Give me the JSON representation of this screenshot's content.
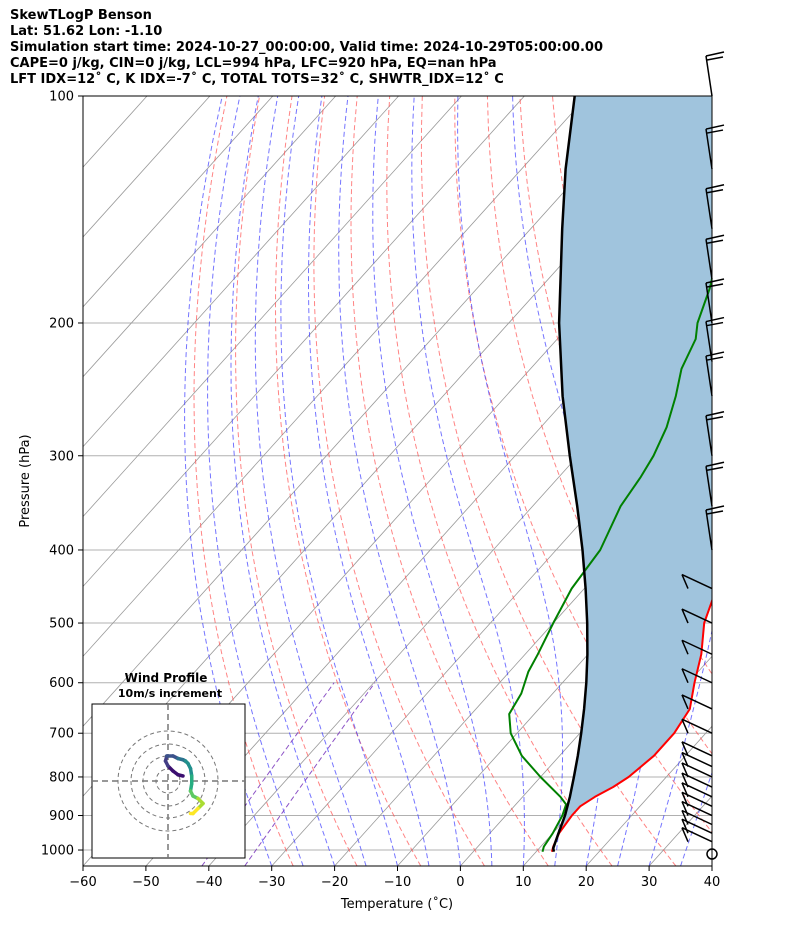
{
  "header": {
    "line1": "SkewTLogP Benson",
    "line2": "Lat: 51.62   Lon: -1.10",
    "line3": "Simulation start time: 2024-10-27_00:00:00, Valid time: 2024-10-29T05:00:00.00",
    "line4": "CAPE=0 j/kg, CIN=0 j/kg, LCL=994 hPa, LFC=920 hPa, EQ=nan hPa",
    "line5": "LFT IDX=12˚ C, K IDX=-7˚ C, TOTAL TOTS=32˚ C, SHWTR_IDX=12˚ C"
  },
  "chart_data": {
    "type": "line",
    "subtype": "skew-T log-P",
    "xlabel": "Temperature ($^\\circ$C)",
    "ylabel": "Pressure (hPa)",
    "xlim": [
      -60,
      40
    ],
    "ylim": [
      1050,
      100
    ],
    "xticks": [
      "−60",
      "−50",
      "−40",
      "−30",
      "−20",
      "−10",
      "0",
      "10",
      "20",
      "30",
      "40"
    ],
    "yticks": [
      "100",
      "200",
      "300",
      "400",
      "500",
      "600",
      "700",
      "800",
      "900",
      "1000"
    ],
    "grid": true,
    "colors": {
      "temperature": "#ff0000",
      "dewpoint": "#008000",
      "parcel": "#000000",
      "shading": "#a0c4dd",
      "dry_adiabat": "#ff5050",
      "moist_adiabat": "#3a3aff",
      "mixing_ratio": "#8040c0",
      "isotherm": "#999999"
    },
    "series": [
      {
        "key": "temperature",
        "values": [
          [
            1005,
            12.5
          ],
          [
            990,
            12
          ],
          [
            950,
            11
          ],
          [
            900,
            10.5
          ],
          [
            875,
            10.5
          ],
          [
            850,
            11.5
          ],
          [
            825,
            13
          ],
          [
            800,
            14
          ],
          [
            750,
            15
          ],
          [
            700,
            15
          ],
          [
            650,
            14
          ],
          [
            600,
            11
          ],
          [
            550,
            8
          ],
          [
            500,
            4
          ],
          [
            450,
            1
          ],
          [
            400,
            -3
          ],
          [
            350,
            -7
          ],
          [
            300,
            -13
          ],
          [
            275,
            -16
          ],
          [
            250,
            -18
          ],
          [
            230,
            -20
          ],
          [
            210,
            -21
          ],
          [
            200,
            -22
          ],
          [
            180,
            -25
          ],
          [
            170,
            -27
          ],
          [
            155,
            -29
          ],
          [
            140,
            -32
          ],
          [
            125,
            -35
          ],
          [
            113,
            -38
          ],
          [
            100,
            -42
          ]
        ]
      },
      {
        "key": "dewpoint",
        "values": [
          [
            1005,
            11
          ],
          [
            990,
            10.5
          ],
          [
            950,
            10
          ],
          [
            900,
            9
          ],
          [
            870,
            8
          ],
          [
            850,
            6
          ],
          [
            800,
            0
          ],
          [
            750,
            -6
          ],
          [
            700,
            -11
          ],
          [
            660,
            -14
          ],
          [
            620,
            -15
          ],
          [
            580,
            -17
          ],
          [
            550,
            -18
          ],
          [
            500,
            -20
          ],
          [
            450,
            -22
          ],
          [
            400,
            -23
          ],
          [
            350,
            -26
          ],
          [
            320,
            -27
          ],
          [
            300,
            -28
          ],
          [
            275,
            -30
          ],
          [
            250,
            -33
          ],
          [
            230,
            -36
          ],
          [
            210,
            -38
          ],
          [
            200,
            -40
          ],
          [
            180,
            -43
          ],
          [
            165,
            -46
          ],
          [
            150,
            -50
          ],
          [
            135,
            -54
          ],
          [
            120,
            -55
          ],
          [
            108,
            -56
          ],
          [
            100,
            -57
          ]
        ]
      },
      {
        "key": "parcel",
        "values": [
          [
            1005,
            12.8
          ],
          [
            994,
            12.2
          ],
          [
            950,
            10.9
          ],
          [
            900,
            9.4
          ],
          [
            850,
            7.5
          ],
          [
            800,
            5.3
          ],
          [
            750,
            2.9
          ],
          [
            700,
            0.2
          ],
          [
            650,
            -2.8
          ],
          [
            600,
            -6.2
          ],
          [
            550,
            -10.1
          ],
          [
            500,
            -14.6
          ],
          [
            450,
            -19.8
          ],
          [
            400,
            -25.8
          ],
          [
            350,
            -32.9
          ],
          [
            300,
            -41.3
          ],
          [
            250,
            -51
          ],
          [
            200,
            -62
          ],
          [
            150,
            -75
          ],
          [
            125,
            -83
          ],
          [
            100,
            -92
          ]
        ]
      }
    ],
    "wind_barbs_hPa": [
      1000,
      975,
      950,
      925,
      900,
      875,
      850,
      825,
      800,
      775,
      750,
      700,
      650,
      600,
      550,
      500,
      450,
      400,
      350,
      300,
      250,
      225,
      200,
      175,
      150,
      125,
      100
    ]
  },
  "inset": {
    "title_line1": "Wind Profile",
    "title_line2": "10m/s increment",
    "hodograph": [
      [
        0,
        0
      ],
      [
        -2,
        -0.5
      ],
      [
        -4,
        -2
      ],
      [
        -6,
        -4
      ],
      [
        -7,
        -6
      ],
      [
        -6.5,
        -8
      ],
      [
        -4,
        -8
      ],
      [
        -2,
        -7
      ],
      [
        0,
        -6.5
      ],
      [
        1,
        -6
      ],
      [
        2,
        -5
      ],
      [
        3,
        -3
      ],
      [
        3.5,
        0
      ],
      [
        3.5,
        3
      ],
      [
        3,
        6
      ],
      [
        4,
        8
      ],
      [
        6,
        9
      ],
      [
        8,
        11
      ],
      [
        6,
        13
      ],
      [
        4,
        15
      ],
      [
        3,
        15
      ]
    ]
  }
}
